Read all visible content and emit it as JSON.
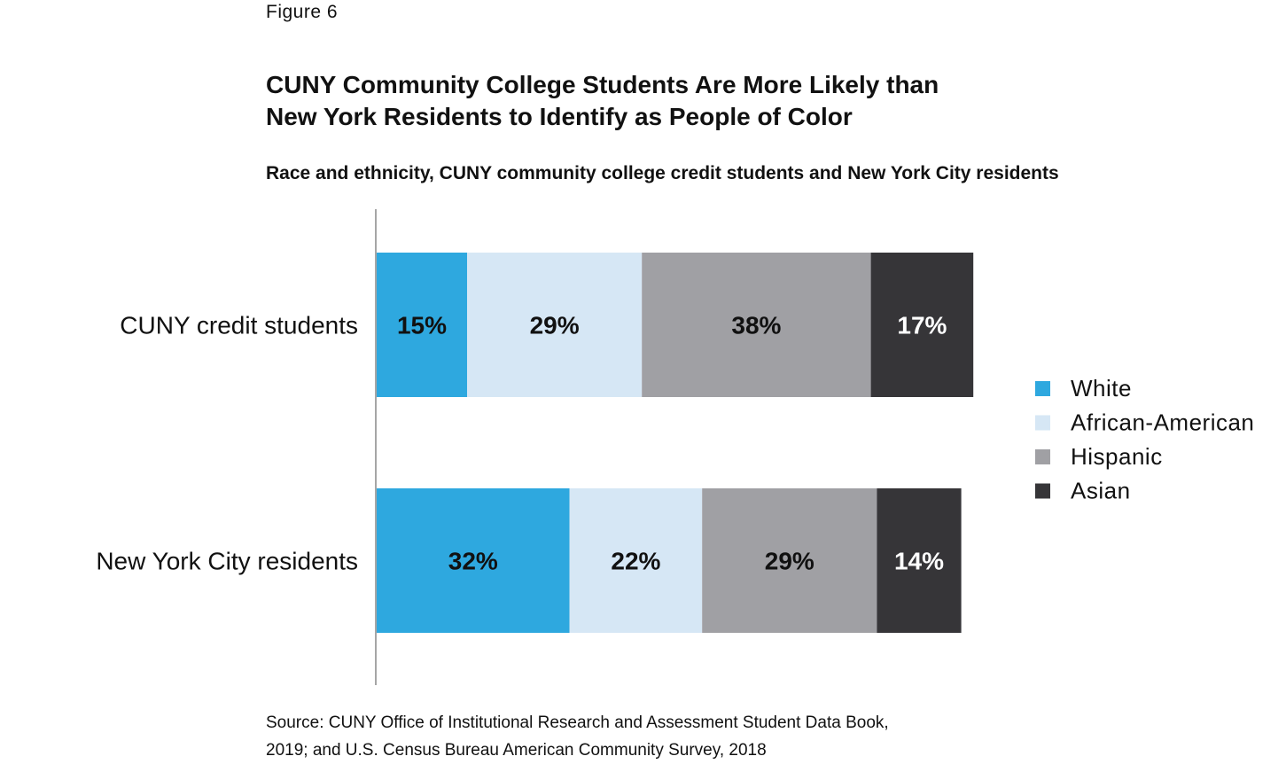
{
  "figure_label": "Figure 6",
  "source": {
    "line1": "Source: CUNY Office of Institutional Research and Assessment Student Data Book,",
    "line2": "2019; and U.S. Census Bureau American Community Survey, 2018"
  },
  "chart_data": {
    "type": "bar",
    "orientation": "horizontal",
    "stacked": true,
    "title": [
      "CUNY Community College Students Are More Likely than",
      "New York Residents to Identify as People of Color"
    ],
    "subtitle": "Race and ethnicity, CUNY community college credit students and New York City residents",
    "categories": [
      "CUNY credit students",
      "New York City residents"
    ],
    "series": [
      {
        "name": "White",
        "values": [
          15,
          32
        ],
        "labels": [
          "15%",
          "32%"
        ],
        "color": "#2ea8df",
        "label_color": "#111111"
      },
      {
        "name": "African-American",
        "values": [
          29,
          22
        ],
        "labels": [
          "29%",
          "22%"
        ],
        "color": "#d6e7f5",
        "label_color": "#111111"
      },
      {
        "name": "Hispanic",
        "values": [
          38,
          29
        ],
        "labels": [
          "38%",
          "29%"
        ],
        "color": "#a0a0a4",
        "label_color": "#111111"
      },
      {
        "name": "Asian",
        "values": [
          17,
          14
        ],
        "labels": [
          "17%",
          "14%"
        ],
        "color": "#363538",
        "label_color": "#ffffff"
      }
    ],
    "xlim": [
      0,
      100
    ],
    "grid": false,
    "legend_position": "right"
  }
}
